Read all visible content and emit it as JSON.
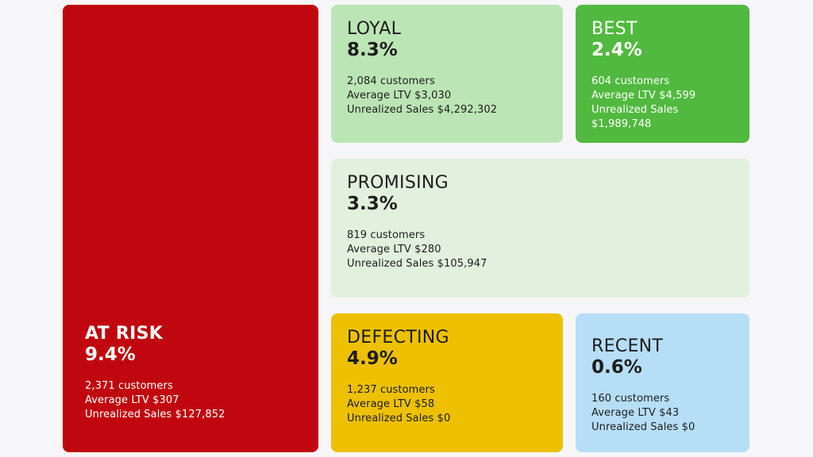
{
  "segments": {
    "at_risk": {
      "name": "AT RISK",
      "pct": "9.4%",
      "customers": "2,371 customers",
      "ltv": "Average LTV $307",
      "sales": "Unrealized Sales $127,852",
      "color": "#c0070f"
    },
    "loyal": {
      "name": "LOYAL",
      "pct": "8.3%",
      "customers": "2,084 customers",
      "ltv": "Average LTV $3,030",
      "sales": "Unrealized Sales $4,292,302",
      "color": "#bce5b5"
    },
    "best": {
      "name": "BEST",
      "pct": "2.4%",
      "customers": "604 customers",
      "ltv": "Average LTV $4,599",
      "sales": "Unrealized Sales $1,989,748",
      "color": "#51b93f"
    },
    "promising": {
      "name": "PROMISING",
      "pct": "3.3%",
      "customers": "819 customers",
      "ltv": "Average LTV $280",
      "sales": "Unrealized Sales $105,947",
      "color": "#e2f1dd"
    },
    "defecting": {
      "name": "DEFECTING",
      "pct": "4.9%",
      "customers": "1,237 customers",
      "ltv": "Average LTV $58",
      "sales": "Unrealized Sales $0",
      "color": "#edc100"
    },
    "recent": {
      "name": "RECENT",
      "pct": "0.6%",
      "customers": "160 customers",
      "ltv": "Average LTV $43",
      "sales": "Unrealized Sales $0",
      "color": "#b6def7"
    }
  }
}
